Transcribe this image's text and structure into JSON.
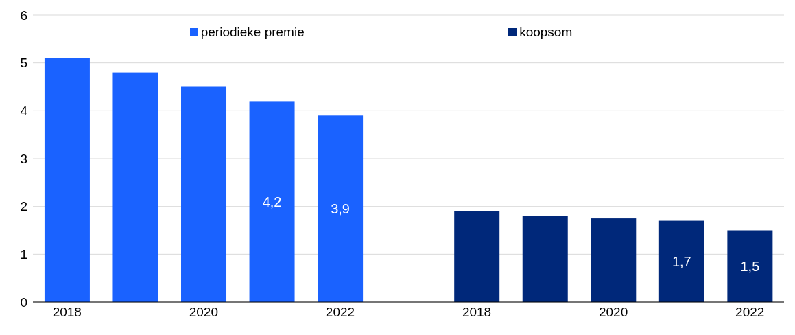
{
  "chart_data": {
    "type": "bar",
    "stacked": true,
    "categories": [
      "2018",
      null,
      "2020",
      null,
      "2022",
      null,
      "2018",
      null,
      "2020",
      null,
      "2022"
    ],
    "series": [
      {
        "name": "periodieke premie",
        "color": "#1a62ff",
        "values": [
          5.1,
          4.8,
          4.5,
          4.2,
          3.9,
          null,
          null,
          null,
          null,
          null,
          null
        ],
        "value_labels": [
          null,
          null,
          null,
          "4,2",
          "3,9",
          null,
          null,
          null,
          null,
          null,
          null
        ]
      },
      {
        "name": "koopsom",
        "color": "#00287a",
        "values": [
          null,
          null,
          null,
          null,
          null,
          null,
          1.9,
          1.8,
          1.75,
          1.7,
          1.5
        ],
        "value_labels": [
          null,
          null,
          null,
          null,
          null,
          null,
          null,
          null,
          null,
          "1,7",
          "1,5"
        ]
      }
    ],
    "ylim": [
      0,
      6
    ],
    "yticks": [
      0,
      1,
      2,
      3,
      4,
      5,
      6
    ],
    "grid": "y",
    "legend": "top"
  }
}
